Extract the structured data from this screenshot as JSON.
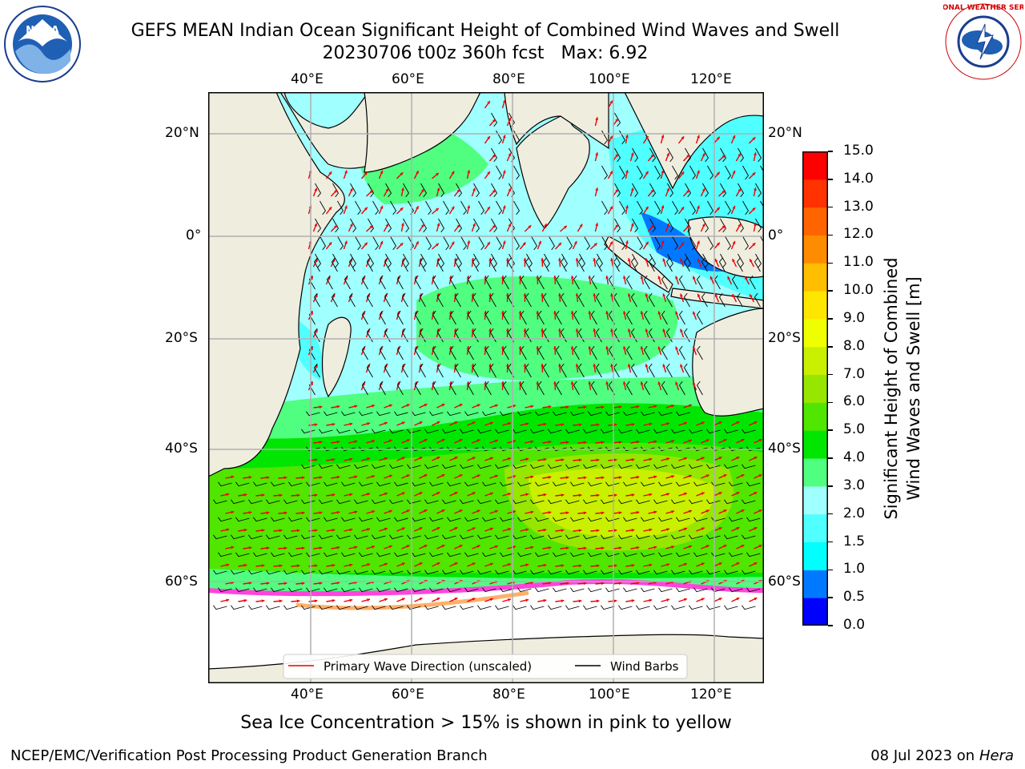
{
  "title": {
    "line1": "GEFS MEAN Indian Ocean Significant Height of Combined Wind Waves and Swell",
    "run": "20230706 t00z 360h fcst",
    "max": "Max: 6.92"
  },
  "map": {
    "lon_ticks": [
      "40°E",
      "60°E",
      "80°E",
      "100°E",
      "120°E"
    ],
    "lat_ticks_left": [
      "20°N",
      "0°",
      "20°S",
      "40°S",
      "60°S"
    ],
    "lat_ticks_right": [
      "20°N",
      "0°",
      "20°S",
      "40°S",
      "60°S"
    ],
    "legend": {
      "wave_direction": "Primary Wave Direction (unscaled)",
      "wind_barbs": "Wind Barbs"
    },
    "colors": {
      "land": "#efedde",
      "ice": "#ffffff",
      "arrow": "#ee0000",
      "barb": "#000000"
    }
  },
  "colorbar": {
    "label_line1": "Significant Height of Combined",
    "label_line2": "Wind Waves and Swell [m]",
    "ticks": [
      "0.0",
      "0.5",
      "1.0",
      "1.5",
      "2.0",
      "3.0",
      "4.0",
      "5.0",
      "6.0",
      "7.0",
      "8.0",
      "9.0",
      "10.0",
      "11.0",
      "12.0",
      "13.0",
      "14.0",
      "15.0"
    ],
    "colors": [
      "#0000ff",
      "#0078ff",
      "#00ffff",
      "#50ffff",
      "#a0ffff",
      "#50ff80",
      "#00e600",
      "#50e600",
      "#96e600",
      "#c8f000",
      "#f0ff00",
      "#ffe600",
      "#ffbe00",
      "#ff8c00",
      "#ff6400",
      "#ff3200",
      "#ff0000"
    ]
  },
  "caption": "Sea Ice Concentration > 15% is shown in pink to yellow",
  "footer": {
    "left": "NCEP/EMC/Verification Post Processing Product Generation Branch",
    "date": "08 Jul 2023 on ",
    "host": "Hera"
  },
  "logos": {
    "noaa_text": "NOAA",
    "nws_text": "NATIONAL WEATHER SERVICE"
  }
}
